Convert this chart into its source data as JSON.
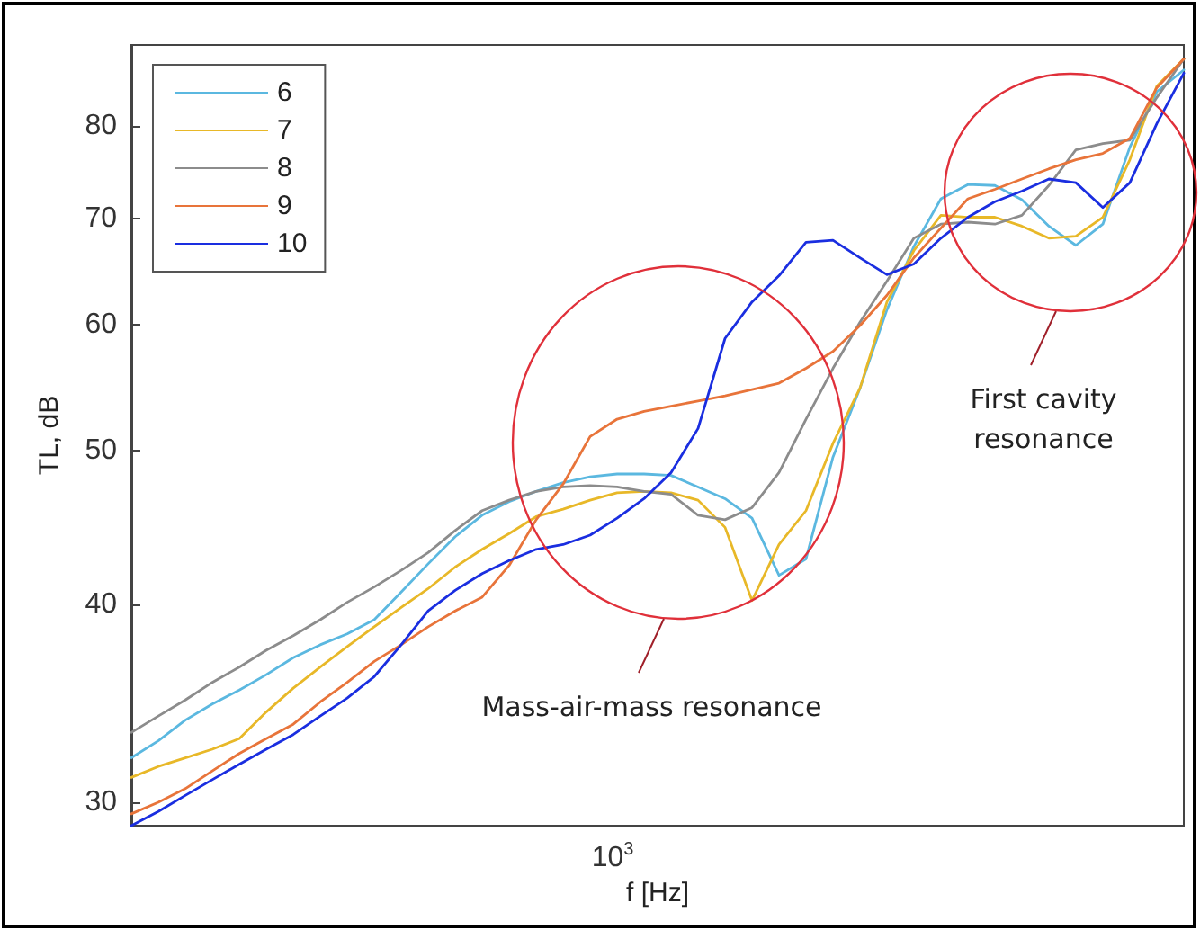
{
  "chart_data": {
    "type": "line",
    "xlabel": "f [Hz]",
    "ylabel": "TL, dB",
    "log": "y",
    "grid": false,
    "legend": "top left",
    "marker": "none",
    "line_style": "solid",
    "categories": [
      null,
      null,
      null,
      null,
      null,
      null,
      null,
      null,
      null,
      null,
      null,
      null,
      null,
      null,
      null,
      null,
      null,
      null,
      null,
      null,
      null,
      null,
      null,
      null,
      null,
      null,
      null,
      null,
      null,
      null,
      null,
      null,
      null,
      null,
      null,
      null,
      null,
      null,
      null,
      null
    ],
    "ylim": [
      29,
      90
    ],
    "yticks": [
      30,
      40,
      50,
      60,
      70,
      80
    ],
    "annotations": [
      "Mass-air-mass resonance",
      "First cavity resonance",
      "10$^{3}$"
    ],
    "series": [
      {
        "name": "6",
        "color": "#5bb8e0",
        "values": [
          32.0,
          32.8,
          33.8,
          34.6,
          35.3,
          36.1,
          37.0,
          37.7,
          38.3,
          39.1,
          40.7,
          42.4,
          44.1,
          45.5,
          46.4,
          47.1,
          47.7,
          48.1,
          48.3,
          48.3,
          48.2,
          47.4,
          46.6,
          45.3,
          41.7,
          42.7,
          49.5,
          54.7,
          61.3,
          67.2,
          72.0,
          73.5,
          73.4,
          71.9,
          69.2,
          67.3,
          69.4,
          77.6,
          84.1,
          86.8
        ]
      },
      {
        "name": "7",
        "color": "#e8b828",
        "values": [
          31.1,
          31.6,
          32.0,
          32.4,
          32.9,
          34.2,
          35.4,
          36.5,
          37.6,
          38.7,
          39.8,
          40.9,
          42.2,
          43.3,
          44.3,
          45.4,
          45.9,
          46.5,
          47.0,
          47.1,
          47.0,
          46.5,
          44.7,
          40.2,
          43.6,
          45.8,
          50.5,
          54.7,
          62.0,
          66.8,
          70.3,
          70.1,
          70.1,
          69.2,
          68.0,
          68.2,
          70.1,
          76.2,
          84.8,
          88.2
        ]
      },
      {
        "name": "8",
        "color": "#8c8c8c",
        "values": [
          33.2,
          34.0,
          34.8,
          35.7,
          36.5,
          37.4,
          38.2,
          39.1,
          40.1,
          41.0,
          42.0,
          43.1,
          44.5,
          45.8,
          46.5,
          47.1,
          47.4,
          47.5,
          47.4,
          47.1,
          46.9,
          45.5,
          45.2,
          46.0,
          48.4,
          52.3,
          56.3,
          60.2,
          63.9,
          68.0,
          69.4,
          69.6,
          69.4,
          70.3,
          73.4,
          77.3,
          78.0,
          78.4,
          83.4,
          88.2
        ]
      },
      {
        "name": "9",
        "color": "#e8743a",
        "values": [
          29.5,
          30.0,
          30.6,
          31.4,
          32.2,
          32.9,
          33.6,
          34.7,
          35.7,
          36.8,
          37.7,
          38.7,
          39.6,
          40.4,
          42.3,
          45.2,
          47.6,
          51.0,
          52.3,
          52.9,
          53.3,
          53.7,
          54.1,
          54.6,
          55.1,
          56.3,
          57.7,
          59.9,
          62.6,
          66.1,
          69.0,
          72.0,
          73.0,
          74.1,
          75.2,
          76.2,
          76.9,
          78.6,
          84.6,
          88.2
        ]
      },
      {
        "name": "10",
        "color": "#1a2ee0",
        "values": [
          29.0,
          29.6,
          30.3,
          31.0,
          31.7,
          32.4,
          33.1,
          34.0,
          34.9,
          36.0,
          37.7,
          39.6,
          40.8,
          41.8,
          42.6,
          43.3,
          43.6,
          44.2,
          45.3,
          46.6,
          48.4,
          51.6,
          58.8,
          62.0,
          64.4,
          67.6,
          67.8,
          66.1,
          64.5,
          65.5,
          68.0,
          70.1,
          71.7,
          72.8,
          74.1,
          73.7,
          71.1,
          73.7,
          80.3,
          86.4
        ]
      }
    ]
  }
}
